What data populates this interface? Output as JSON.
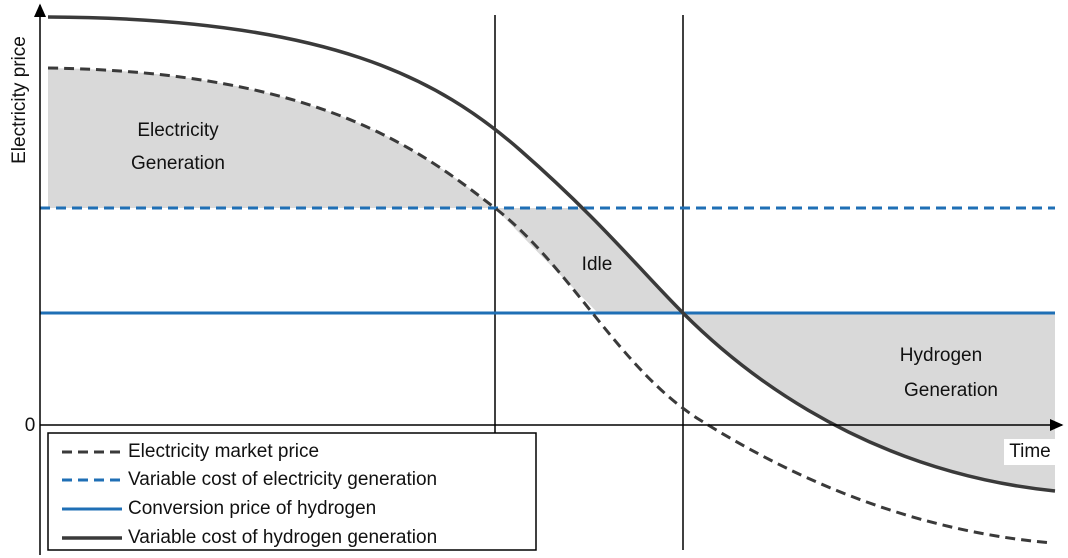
{
  "axes": {
    "y_label": "Electricity price",
    "x_label": "Time",
    "origin_label": "0"
  },
  "regions": [
    {
      "lines": [
        "Electricity",
        "Generation"
      ]
    },
    {
      "lines": [
        "Idle"
      ]
    },
    {
      "lines": [
        "Hydrogen",
        "Generation"
      ]
    }
  ],
  "legend": [
    "Electricity market price",
    "Variable cost of electricity generation",
    "Conversion price of hydrogen",
    "Variable cost of hydrogen generation"
  ]
}
